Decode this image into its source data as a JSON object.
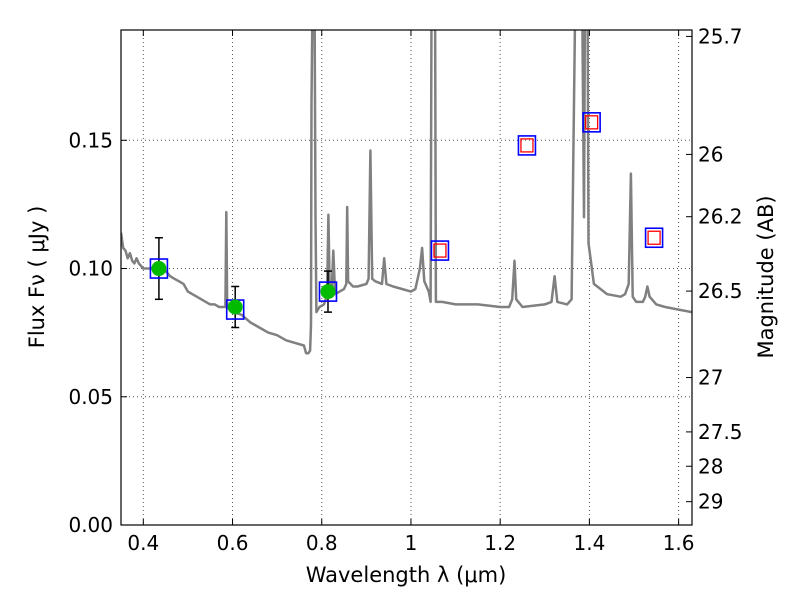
{
  "chart_data": {
    "type": "scatter",
    "xlabel": "Wavelength  λ (μm)",
    "ylabel_left": "Flux  Fν  ( μJy )",
    "ylabel_right": "Magnitude (AB)",
    "xlim": [
      0.35,
      1.63
    ],
    "ylim": [
      0.0,
      0.193
    ],
    "grid": true,
    "x_ticks": [
      {
        "value": 0.4,
        "label": "0.4"
      },
      {
        "value": 0.6,
        "label": "0.6"
      },
      {
        "value": 0.8,
        "label": "0.8"
      },
      {
        "value": 1.0,
        "label": "1"
      },
      {
        "value": 1.2,
        "label": "1.2"
      },
      {
        "value": 1.4,
        "label": "1.4"
      },
      {
        "value": 1.6,
        "label": "1.6"
      }
    ],
    "y_ticks": [
      {
        "value": 0.0,
        "label": "0.00"
      },
      {
        "value": 0.05,
        "label": "0.05"
      },
      {
        "value": 0.1,
        "label": "0.10"
      },
      {
        "value": 0.15,
        "label": "0.15"
      }
    ],
    "right_ticks": [
      {
        "flux": 0.1905,
        "label": "25.7"
      },
      {
        "flux": 0.1445,
        "label": "26"
      },
      {
        "flux": 0.1202,
        "label": "26.2"
      },
      {
        "flux": 0.0912,
        "label": "26.5"
      },
      {
        "flux": 0.0575,
        "label": "27"
      },
      {
        "flux": 0.0363,
        "label": "27.5"
      },
      {
        "flux": 0.0229,
        "label": "28"
      },
      {
        "flux": 0.0091,
        "label": "29"
      }
    ],
    "colors": {
      "model": "#808080",
      "observed": "#00bb00",
      "box_outer": "#0000ff",
      "box_inner": "#ff0000",
      "grid": "#555555"
    },
    "observed_points": [
      {
        "x": 0.435,
        "y": 0.1,
        "err": 0.012
      },
      {
        "x": 0.606,
        "y": 0.085,
        "err": 0.008
      },
      {
        "x": 0.814,
        "y": 0.091,
        "err": 0.008
      }
    ],
    "model_boxes": [
      {
        "x": 0.435,
        "y": 0.1,
        "inner": false
      },
      {
        "x": 0.606,
        "y": 0.084,
        "inner": false
      },
      {
        "x": 0.814,
        "y": 0.091,
        "inner": false
      },
      {
        "x": 1.065,
        "y": 0.107,
        "inner": true
      },
      {
        "x": 1.26,
        "y": 0.148,
        "inner": true
      },
      {
        "x": 1.405,
        "y": 0.157,
        "inner": true
      },
      {
        "x": 1.545,
        "y": 0.112,
        "inner": true
      }
    ],
    "model_spectrum": [
      [
        0.35,
        0.114
      ],
      [
        0.355,
        0.108
      ],
      [
        0.36,
        0.107
      ],
      [
        0.365,
        0.104
      ],
      [
        0.37,
        0.106
      ],
      [
        0.375,
        0.103
      ],
      [
        0.38,
        0.102
      ],
      [
        0.385,
        0.104
      ],
      [
        0.39,
        0.102
      ],
      [
        0.4,
        0.1
      ],
      [
        0.41,
        0.1
      ],
      [
        0.42,
        0.1
      ],
      [
        0.43,
        0.1
      ],
      [
        0.44,
        0.1
      ],
      [
        0.45,
        0.099
      ],
      [
        0.46,
        0.097
      ],
      [
        0.47,
        0.096
      ],
      [
        0.48,
        0.095
      ],
      [
        0.49,
        0.094
      ],
      [
        0.5,
        0.091
      ],
      [
        0.51,
        0.09
      ],
      [
        0.52,
        0.089
      ],
      [
        0.53,
        0.088
      ],
      [
        0.54,
        0.087
      ],
      [
        0.55,
        0.086
      ],
      [
        0.56,
        0.086
      ],
      [
        0.57,
        0.085
      ],
      [
        0.58,
        0.085
      ],
      [
        0.584,
        0.085
      ],
      [
        0.586,
        0.122
      ],
      [
        0.588,
        0.085
      ],
      [
        0.6,
        0.083
      ],
      [
        0.62,
        0.082
      ],
      [
        0.64,
        0.079
      ],
      [
        0.66,
        0.077
      ],
      [
        0.68,
        0.075
      ],
      [
        0.7,
        0.074
      ],
      [
        0.72,
        0.072
      ],
      [
        0.74,
        0.071
      ],
      [
        0.76,
        0.07
      ],
      [
        0.765,
        0.067
      ],
      [
        0.77,
        0.067
      ],
      [
        0.774,
        0.068
      ],
      [
        0.776,
        0.078
      ],
      [
        0.777,
        0.165
      ],
      [
        0.779,
        0.2
      ],
      [
        0.784,
        0.2
      ],
      [
        0.786,
        0.12
      ],
      [
        0.788,
        0.083
      ],
      [
        0.795,
        0.085
      ],
      [
        0.805,
        0.086
      ],
      [
        0.812,
        0.09
      ],
      [
        0.815,
        0.121
      ],
      [
        0.818,
        0.09
      ],
      [
        0.822,
        0.09
      ],
      [
        0.826,
        0.107
      ],
      [
        0.83,
        0.09
      ],
      [
        0.84,
        0.091
      ],
      [
        0.85,
        0.092
      ],
      [
        0.855,
        0.094
      ],
      [
        0.857,
        0.124
      ],
      [
        0.859,
        0.095
      ],
      [
        0.87,
        0.093
      ],
      [
        0.88,
        0.093
      ],
      [
        0.9,
        0.094
      ],
      [
        0.905,
        0.096
      ],
      [
        0.909,
        0.146
      ],
      [
        0.913,
        0.096
      ],
      [
        0.92,
        0.095
      ],
      [
        0.935,
        0.094
      ],
      [
        0.94,
        0.104
      ],
      [
        0.945,
        0.094
      ],
      [
        0.96,
        0.093
      ],
      [
        0.98,
        0.092
      ],
      [
        1.0,
        0.091
      ],
      [
        1.01,
        0.092
      ],
      [
        1.02,
        0.1
      ],
      [
        1.025,
        0.108
      ],
      [
        1.03,
        0.095
      ],
      [
        1.04,
        0.091
      ],
      [
        1.044,
        0.087
      ],
      [
        1.046,
        0.2
      ],
      [
        1.054,
        0.2
      ],
      [
        1.056,
        0.087
      ],
      [
        1.07,
        0.087
      ],
      [
        1.1,
        0.086
      ],
      [
        1.15,
        0.086
      ],
      [
        1.2,
        0.085
      ],
      [
        1.22,
        0.085
      ],
      [
        1.227,
        0.088
      ],
      [
        1.232,
        0.103
      ],
      [
        1.236,
        0.088
      ],
      [
        1.25,
        0.085
      ],
      [
        1.3,
        0.086
      ],
      [
        1.315,
        0.087
      ],
      [
        1.322,
        0.097
      ],
      [
        1.328,
        0.087
      ],
      [
        1.35,
        0.086
      ],
      [
        1.36,
        0.088
      ],
      [
        1.368,
        0.2
      ],
      [
        1.384,
        0.2
      ],
      [
        1.388,
        0.12
      ],
      [
        1.39,
        0.2
      ],
      [
        1.396,
        0.2
      ],
      [
        1.398,
        0.11
      ],
      [
        1.41,
        0.094
      ],
      [
        1.44,
        0.09
      ],
      [
        1.47,
        0.089
      ],
      [
        1.48,
        0.09
      ],
      [
        1.488,
        0.094
      ],
      [
        1.493,
        0.137
      ],
      [
        1.497,
        0.089
      ],
      [
        1.505,
        0.087
      ],
      [
        1.52,
        0.087
      ],
      [
        1.525,
        0.089
      ],
      [
        1.53,
        0.093
      ],
      [
        1.535,
        0.089
      ],
      [
        1.55,
        0.086
      ],
      [
        1.57,
        0.085
      ],
      [
        1.6,
        0.084
      ],
      [
        1.63,
        0.083
      ]
    ]
  }
}
